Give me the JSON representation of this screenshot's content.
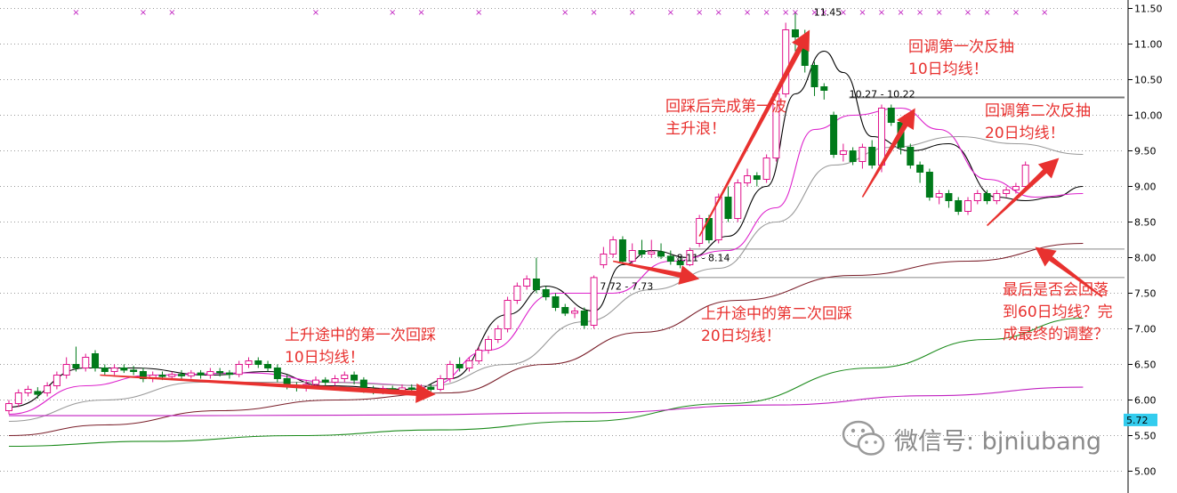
{
  "chart_data": {
    "type": "candlestick",
    "y_axis": {
      "range": [
        4.9,
        11.6
      ],
      "ticks": [
        "5.00",
        "5.50",
        "6.00",
        "6.50",
        "7.00",
        "7.50",
        "8.00",
        "8.50",
        "9.00",
        "9.50",
        "10.00",
        "10.50",
        "11.00",
        "11.50"
      ],
      "position": "right",
      "grid": "horizontal dotted"
    },
    "current_price_tag": "5.72",
    "candles": [
      {
        "o": 5.85,
        "c": 5.95,
        "h": 6.0,
        "l": 5.8
      },
      {
        "o": 5.95,
        "c": 6.1,
        "h": 6.15,
        "l": 5.9
      },
      {
        "o": 6.1,
        "c": 6.15,
        "h": 6.2,
        "l": 6.05
      },
      {
        "o": 6.12,
        "c": 6.08,
        "h": 6.18,
        "l": 6.02
      },
      {
        "o": 6.1,
        "c": 6.2,
        "h": 6.25,
        "l": 6.05
      },
      {
        "o": 6.2,
        "c": 6.35,
        "h": 6.4,
        "l": 6.15
      },
      {
        "o": 6.35,
        "c": 6.5,
        "h": 6.6,
        "l": 6.3
      },
      {
        "o": 6.5,
        "c": 6.45,
        "h": 6.75,
        "l": 6.4
      },
      {
        "o": 6.45,
        "c": 6.6,
        "h": 6.65,
        "l": 6.4
      },
      {
        "o": 6.65,
        "c": 6.45,
        "h": 6.7,
        "l": 6.4
      },
      {
        "o": 6.45,
        "c": 6.4,
        "h": 6.5,
        "l": 6.35
      },
      {
        "o": 6.4,
        "c": 6.45,
        "h": 6.5,
        "l": 6.35
      },
      {
        "o": 6.45,
        "c": 6.42,
        "h": 6.5,
        "l": 6.38
      },
      {
        "o": 6.42,
        "c": 6.4,
        "h": 6.48,
        "l": 6.35
      },
      {
        "o": 6.4,
        "c": 6.3,
        "h": 6.45,
        "l": 6.25
      },
      {
        "o": 6.3,
        "c": 6.35,
        "h": 6.4,
        "l": 6.25
      },
      {
        "o": 6.35,
        "c": 6.33,
        "h": 6.4,
        "l": 6.28
      },
      {
        "o": 6.33,
        "c": 6.36,
        "h": 6.4,
        "l": 6.3
      },
      {
        "o": 6.36,
        "c": 6.34,
        "h": 6.42,
        "l": 6.3
      },
      {
        "o": 6.34,
        "c": 6.38,
        "h": 6.42,
        "l": 6.3
      },
      {
        "o": 6.38,
        "c": 6.35,
        "h": 6.42,
        "l": 6.3
      },
      {
        "o": 6.35,
        "c": 6.4,
        "h": 6.45,
        "l": 6.3
      },
      {
        "o": 6.4,
        "c": 6.38,
        "h": 6.45,
        "l": 6.33
      },
      {
        "o": 6.38,
        "c": 6.36,
        "h": 6.42,
        "l": 6.3
      },
      {
        "o": 6.36,
        "c": 6.5,
        "h": 6.55,
        "l": 6.32
      },
      {
        "o": 6.5,
        "c": 6.55,
        "h": 6.6,
        "l": 6.45
      },
      {
        "o": 6.55,
        "c": 6.5,
        "h": 6.6,
        "l": 6.45
      },
      {
        "o": 6.5,
        "c": 6.45,
        "h": 6.55,
        "l": 6.4
      },
      {
        "o": 6.45,
        "c": 6.3,
        "h": 6.5,
        "l": 6.25
      },
      {
        "o": 6.3,
        "c": 6.2,
        "h": 6.35,
        "l": 6.15
      },
      {
        "o": 6.2,
        "c": 6.18,
        "h": 6.25,
        "l": 6.12
      },
      {
        "o": 6.18,
        "c": 6.22,
        "h": 6.28,
        "l": 6.12
      },
      {
        "o": 6.22,
        "c": 6.28,
        "h": 6.33,
        "l": 6.18
      },
      {
        "o": 6.28,
        "c": 6.25,
        "h": 6.32,
        "l": 6.2
      },
      {
        "o": 6.25,
        "c": 6.3,
        "h": 6.35,
        "l": 6.2
      },
      {
        "o": 6.3,
        "c": 6.35,
        "h": 6.4,
        "l": 6.25
      },
      {
        "o": 6.35,
        "c": 6.28,
        "h": 6.4,
        "l": 6.22
      },
      {
        "o": 6.28,
        "c": 6.15,
        "h": 6.32,
        "l": 6.1
      },
      {
        "o": 6.15,
        "c": 6.12,
        "h": 6.2,
        "l": 6.08
      },
      {
        "o": 6.12,
        "c": 6.16,
        "h": 6.2,
        "l": 6.08
      },
      {
        "o": 6.16,
        "c": 6.13,
        "h": 6.2,
        "l": 6.08
      },
      {
        "o": 6.13,
        "c": 6.17,
        "h": 6.22,
        "l": 6.1
      },
      {
        "o": 6.17,
        "c": 6.15,
        "h": 6.22,
        "l": 6.1
      },
      {
        "o": 6.15,
        "c": 6.18,
        "h": 6.22,
        "l": 6.1
      },
      {
        "o": 6.18,
        "c": 6.15,
        "h": 6.22,
        "l": 6.12
      },
      {
        "o": 6.15,
        "c": 6.3,
        "h": 6.35,
        "l": 6.12
      },
      {
        "o": 6.3,
        "c": 6.5,
        "h": 6.55,
        "l": 6.25
      },
      {
        "o": 6.5,
        "c": 6.45,
        "h": 6.6,
        "l": 6.4
      },
      {
        "o": 6.45,
        "c": 6.55,
        "h": 6.6,
        "l": 6.4
      },
      {
        "o": 6.55,
        "c": 6.7,
        "h": 6.75,
        "l": 6.5
      },
      {
        "o": 6.7,
        "c": 6.85,
        "h": 6.9,
        "l": 6.65
      },
      {
        "o": 6.85,
        "c": 7.0,
        "h": 7.05,
        "l": 6.8
      },
      {
        "o": 7.0,
        "c": 7.4,
        "h": 7.45,
        "l": 6.95
      },
      {
        "o": 7.4,
        "c": 7.6,
        "h": 7.65,
        "l": 7.35
      },
      {
        "o": 7.6,
        "c": 7.7,
        "h": 7.75,
        "l": 7.55
      },
      {
        "o": 7.7,
        "c": 7.55,
        "h": 8.0,
        "l": 7.5
      },
      {
        "o": 7.55,
        "c": 7.45,
        "h": 7.6,
        "l": 7.4
      },
      {
        "o": 7.45,
        "c": 7.3,
        "h": 7.5,
        "l": 7.25
      },
      {
        "o": 7.3,
        "c": 7.22,
        "h": 7.35,
        "l": 7.18
      },
      {
        "o": 7.22,
        "c": 7.25,
        "h": 7.3,
        "l": 7.15
      },
      {
        "o": 7.25,
        "c": 7.05,
        "h": 7.3,
        "l": 7.0
      },
      {
        "o": 7.05,
        "c": 7.72,
        "h": 7.75,
        "l": 7.0
      },
      {
        "o": 7.9,
        "c": 8.05,
        "h": 8.15,
        "l": 7.85
      },
      {
        "o": 8.05,
        "c": 8.25,
        "h": 8.3,
        "l": 8.0
      },
      {
        "o": 8.25,
        "c": 7.95,
        "h": 8.3,
        "l": 7.9
      },
      {
        "o": 7.95,
        "c": 8.1,
        "h": 8.2,
        "l": 7.9
      },
      {
        "o": 8.1,
        "c": 8.05,
        "h": 8.25,
        "l": 8.0
      },
      {
        "o": 8.05,
        "c": 8.08,
        "h": 8.25,
        "l": 8.0
      },
      {
        "o": 8.08,
        "c": 8.02,
        "h": 8.2,
        "l": 7.98
      },
      {
        "o": 8.02,
        "c": 7.95,
        "h": 8.1,
        "l": 7.9
      },
      {
        "o": 7.95,
        "c": 7.9,
        "h": 8.0,
        "l": 7.85
      },
      {
        "o": 7.9,
        "c": 8.1,
        "h": 8.14,
        "l": 7.88
      },
      {
        "o": 8.2,
        "c": 8.55,
        "h": 8.6,
        "l": 8.15
      },
      {
        "o": 8.55,
        "c": 8.25,
        "h": 8.6,
        "l": 8.2
      },
      {
        "o": 8.25,
        "c": 8.85,
        "h": 8.9,
        "l": 8.2
      },
      {
        "o": 8.85,
        "c": 8.55,
        "h": 9.0,
        "l": 8.5
      },
      {
        "o": 8.55,
        "c": 9.05,
        "h": 9.1,
        "l": 8.5
      },
      {
        "o": 9.05,
        "c": 9.15,
        "h": 9.25,
        "l": 9.0
      },
      {
        "o": 9.15,
        "c": 9.1,
        "h": 9.2,
        "l": 9.0
      },
      {
        "o": 9.1,
        "c": 9.4,
        "h": 9.45,
        "l": 9.05
      },
      {
        "o": 9.4,
        "c": 10.3,
        "h": 10.35,
        "l": 9.35
      },
      {
        "o": 10.3,
        "c": 11.2,
        "h": 11.3,
        "l": 10.25
      },
      {
        "o": 11.2,
        "c": 11.1,
        "h": 11.45,
        "l": 10.9
      },
      {
        "o": 11.1,
        "c": 10.7,
        "h": 11.2,
        "l": 10.6
      },
      {
        "o": 10.7,
        "c": 10.4,
        "h": 10.75,
        "l": 10.27
      },
      {
        "o": 10.4,
        "c": 10.35,
        "h": 10.45,
        "l": 10.22
      },
      {
        "o": 10.0,
        "c": 9.45,
        "h": 10.05,
        "l": 9.4
      },
      {
        "o": 9.45,
        "c": 9.5,
        "h": 9.6,
        "l": 9.35
      },
      {
        "o": 9.5,
        "c": 9.35,
        "h": 9.55,
        "l": 9.3
      },
      {
        "o": 9.35,
        "c": 9.55,
        "h": 9.6,
        "l": 9.25
      },
      {
        "o": 9.55,
        "c": 9.3,
        "h": 9.65,
        "l": 9.25
      },
      {
        "o": 9.3,
        "c": 10.1,
        "h": 10.15,
        "l": 9.2
      },
      {
        "o": 10.1,
        "c": 9.9,
        "h": 10.15,
        "l": 9.85
      },
      {
        "o": 9.9,
        "c": 9.55,
        "h": 9.95,
        "l": 9.45
      },
      {
        "o": 9.55,
        "c": 9.3,
        "h": 9.6,
        "l": 9.25
      },
      {
        "o": 9.3,
        "c": 9.2,
        "h": 9.35,
        "l": 9.05
      },
      {
        "o": 9.2,
        "c": 8.85,
        "h": 9.25,
        "l": 8.8
      },
      {
        "o": 8.85,
        "c": 8.9,
        "h": 8.95,
        "l": 8.75
      },
      {
        "o": 8.9,
        "c": 8.8,
        "h": 8.95,
        "l": 8.7
      },
      {
        "o": 8.8,
        "c": 8.65,
        "h": 8.85,
        "l": 8.6
      },
      {
        "o": 8.65,
        "c": 8.8,
        "h": 8.85,
        "l": 8.6
      },
      {
        "o": 8.8,
        "c": 8.9,
        "h": 8.95,
        "l": 8.75
      },
      {
        "o": 8.9,
        "c": 8.8,
        "h": 8.95,
        "l": 8.75
      },
      {
        "o": 8.8,
        "c": 8.9,
        "h": 8.95,
        "l": 8.75
      },
      {
        "o": 8.9,
        "c": 8.95,
        "h": 9.0,
        "l": 8.85
      },
      {
        "o": 8.95,
        "c": 9.0,
        "h": 9.05,
        "l": 8.9
      },
      {
        "o": 9.0,
        "c": 9.3,
        "h": 9.35,
        "l": 8.95
      }
    ],
    "moving_averages": [
      {
        "name": "MA5",
        "color": "#000000",
        "points": [
          [
            0,
            5.9
          ],
          [
            8,
            6.45
          ],
          [
            13,
            6.45
          ],
          [
            21,
            6.35
          ],
          [
            27,
            6.4
          ],
          [
            33,
            6.2
          ],
          [
            42,
            6.15
          ],
          [
            46,
            6.3
          ],
          [
            52,
            7.2
          ],
          [
            56,
            7.6
          ],
          [
            61,
            7.25
          ],
          [
            64,
            7.9
          ],
          [
            67,
            8.1
          ],
          [
            71,
            8.0
          ],
          [
            75,
            8.3
          ],
          [
            79,
            9.0
          ],
          [
            82,
            10.3
          ],
          [
            85,
            10.9
          ],
          [
            87,
            10.6
          ],
          [
            90,
            9.7
          ],
          [
            94,
            9.5
          ],
          [
            98,
            9.6
          ],
          [
            103,
            8.85
          ],
          [
            106,
            8.8
          ],
          [
            109,
            8.85
          ],
          [
            112,
            9.0
          ]
        ]
      },
      {
        "name": "MA10",
        "color": "#dd22cc",
        "points": [
          [
            0,
            5.8
          ],
          [
            8,
            6.2
          ],
          [
            15,
            6.35
          ],
          [
            25,
            6.38
          ],
          [
            34,
            6.25
          ],
          [
            44,
            6.2
          ],
          [
            50,
            6.7
          ],
          [
            57,
            7.5
          ],
          [
            63,
            7.5
          ],
          [
            69,
            7.95
          ],
          [
            75,
            8.1
          ],
          [
            80,
            8.7
          ],
          [
            84,
            9.8
          ],
          [
            88,
            10.0
          ],
          [
            93,
            10.1
          ],
          [
            97,
            9.8
          ],
          [
            102,
            9.1
          ],
          [
            107,
            8.85
          ],
          [
            112,
            8.9
          ]
        ]
      },
      {
        "name": "MA20",
        "color": "#999999",
        "points": [
          [
            0,
            5.7
          ],
          [
            10,
            6.0
          ],
          [
            20,
            6.25
          ],
          [
            32,
            6.25
          ],
          [
            44,
            6.2
          ],
          [
            52,
            6.5
          ],
          [
            60,
            7.1
          ],
          [
            67,
            7.55
          ],
          [
            74,
            7.85
          ],
          [
            80,
            8.5
          ],
          [
            86,
            9.3
          ],
          [
            92,
            9.55
          ],
          [
            99,
            9.7
          ],
          [
            105,
            9.6
          ],
          [
            112,
            9.45
          ]
        ]
      },
      {
        "name": "MA60",
        "color": "#7a1f2a",
        "points": [
          [
            0,
            5.5
          ],
          [
            10,
            5.65
          ],
          [
            22,
            5.85
          ],
          [
            34,
            6.0
          ],
          [
            46,
            6.1
          ],
          [
            56,
            6.5
          ],
          [
            66,
            6.95
          ],
          [
            76,
            7.4
          ],
          [
            88,
            7.75
          ],
          [
            100,
            7.95
          ],
          [
            112,
            8.2
          ]
        ]
      },
      {
        "name": "MA120",
        "color": "#1a8a1a",
        "points": [
          [
            0,
            5.35
          ],
          [
            15,
            5.42
          ],
          [
            30,
            5.5
          ],
          [
            45,
            5.58
          ],
          [
            60,
            5.7
          ],
          [
            75,
            5.95
          ],
          [
            90,
            6.45
          ],
          [
            102,
            6.85
          ],
          [
            112,
            7.15
          ]
        ]
      },
      {
        "name": "MA250",
        "color": "#c020c0",
        "points": [
          [
            0,
            5.78
          ],
          [
            20,
            5.78
          ],
          [
            40,
            5.79
          ],
          [
            60,
            5.82
          ],
          [
            80,
            5.93
          ],
          [
            96,
            6.06
          ],
          [
            112,
            6.18
          ]
        ]
      }
    ],
    "price_labels": [
      {
        "text": "11.45",
        "index": 83,
        "price": 11.45
      },
      {
        "text": "10.27 - 10.22",
        "index": 88,
        "price": 10.3
      },
      {
        "text": "8.11 - 8.14",
        "index": 70,
        "price": 8.0
      },
      {
        "text": "7.72 - 7.73",
        "index": 62,
        "price": 7.6
      }
    ],
    "horizontal_lines": [
      10.25,
      8.12,
      7.72
    ],
    "markers_top": [
      7,
      14,
      17,
      32,
      40,
      43,
      49,
      58,
      61,
      65,
      69,
      72,
      74,
      77,
      79,
      81,
      82,
      84,
      85,
      87,
      89,
      91,
      93,
      95,
      97,
      100,
      102,
      105,
      108
    ],
    "annotations": [
      {
        "lines": [
          "上升途中的第一次回踩",
          "10日均线！"
        ]
      },
      {
        "lines": [
          "上升途中的第二次回踩",
          "20日均线！"
        ]
      },
      {
        "lines": [
          "回踩后完成第一波",
          "主升浪！"
        ]
      },
      {
        "lines": [
          "回调第一次反抽",
          "10日均线！"
        ]
      },
      {
        "lines": [
          "回调第二次反抽",
          "20日均线！"
        ]
      },
      {
        "lines": [
          "最后是否会回落",
          "到60日均线？完",
          "成最终的调整？"
        ]
      }
    ],
    "arrows": [
      {
        "from": [
          9.5,
          6.35
        ],
        "to": [
          44.5,
          6.08
        ]
      },
      {
        "from": [
          63,
          7.95
        ],
        "to": [
          72,
          7.7
        ]
      },
      {
        "from": [
          72,
          8.3
        ],
        "to": [
          83.5,
          11.2
        ]
      },
      {
        "from": [
          89,
          8.85
        ],
        "to": [
          94.5,
          10.1
        ]
      },
      {
        "from": [
          102,
          8.45
        ],
        "to": [
          109.5,
          9.4
        ]
      },
      {
        "from": [
          114,
          7.45
        ],
        "to": [
          107,
          8.15
        ]
      }
    ]
  },
  "watermark": {
    "label": "微信号: bjniubang"
  },
  "colors": {
    "up": "#e0138c",
    "down": "#007a1a",
    "annotation": "#e8312f",
    "price_tag_bg": "#33ccee"
  }
}
